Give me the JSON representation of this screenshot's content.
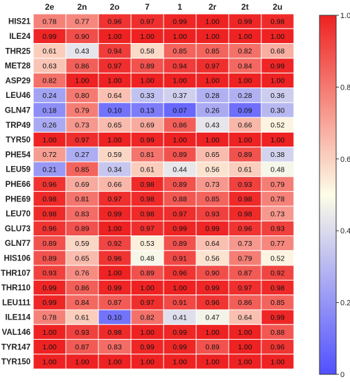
{
  "chart_data": {
    "type": "heatmap",
    "columns": [
      "2e",
      "2n",
      "2o",
      "7",
      "1",
      "2r",
      "2t",
      "2u"
    ],
    "rows": [
      "HIS21",
      "ILE24",
      "THR25",
      "MET28",
      "ASP29",
      "LEU46",
      "GLN47",
      "TRP49",
      "TYR50",
      "PHE54",
      "LEU59",
      "PHE66",
      "PHE69",
      "LEU70",
      "GLU73",
      "GLN77",
      "HIS106",
      "THR107",
      "THR110",
      "LEU111",
      "ILE114",
      "VAL146",
      "TYR147",
      "TYR150"
    ],
    "values": [
      [
        0.78,
        0.77,
        0.96,
        0.97,
        0.99,
        1.0,
        0.99,
        0.98
      ],
      [
        0.99,
        0.9,
        1.0,
        1.0,
        1.0,
        1.0,
        1.0,
        1.0
      ],
      [
        0.61,
        0.43,
        0.94,
        0.58,
        0.85,
        0.85,
        0.82,
        0.68
      ],
      [
        0.63,
        0.86,
        0.97,
        0.89,
        0.94,
        0.97,
        0.84,
        0.99
      ],
      [
        0.82,
        1.0,
        1.0,
        1.0,
        1.0,
        1.0,
        1.0,
        1.0
      ],
      [
        0.24,
        0.8,
        0.64,
        0.33,
        0.37,
        0.28,
        0.28,
        0.36
      ],
      [
        0.18,
        0.79,
        0.1,
        0.13,
        0.07,
        0.26,
        0.09,
        0.3
      ],
      [
        0.26,
        0.73,
        0.65,
        0.69,
        0.86,
        0.43,
        0.66,
        0.52
      ],
      [
        1.0,
        0.97,
        1.0,
        0.99,
        1.0,
        1.0,
        1.0,
        1.0
      ],
      [
        0.72,
        0.27,
        0.59,
        0.81,
        0.89,
        0.65,
        0.89,
        0.38
      ],
      [
        0.21,
        0.85,
        0.34,
        0.61,
        0.44,
        0.56,
        0.61,
        0.48
      ],
      [
        0.96,
        0.69,
        0.66,
        0.98,
        0.89,
        0.73,
        0.93,
        0.79
      ],
      [
        0.98,
        0.81,
        0.97,
        0.98,
        0.88,
        0.85,
        0.98,
        0.78
      ],
      [
        0.98,
        0.83,
        0.99,
        0.98,
        0.97,
        0.93,
        0.98,
        0.73
      ],
      [
        0.96,
        0.89,
        1.0,
        0.97,
        0.99,
        0.99,
        0.96,
        0.93
      ],
      [
        0.89,
        0.59,
        0.92,
        0.53,
        0.89,
        0.64,
        0.73,
        0.77
      ],
      [
        0.89,
        0.65,
        0.96,
        0.48,
        0.91,
        0.56,
        0.79,
        0.52
      ],
      [
        0.93,
        0.76,
        1.0,
        0.89,
        0.96,
        0.9,
        0.87,
        0.92
      ],
      [
        0.99,
        0.86,
        0.99,
        1.0,
        1.0,
        0.99,
        0.97,
        0.98
      ],
      [
        0.99,
        0.84,
        0.87,
        0.97,
        0.91,
        0.96,
        0.86,
        0.85
      ],
      [
        0.78,
        0.61,
        0.1,
        0.82,
        0.41,
        0.47,
        0.64,
        0.99
      ],
      [
        1.0,
        0.93,
        0.98,
        1.0,
        0.99,
        1.0,
        1.0,
        0.88
      ],
      [
        1.0,
        0.87,
        0.83,
        0.99,
        0.99,
        0.89,
        1.0,
        0.96
      ],
      [
        1.0,
        1.0,
        1.0,
        1.0,
        1.0,
        1.0,
        1.0,
        1.0
      ]
    ],
    "colorbar": {
      "min": 0,
      "max": 1,
      "ticks": [
        "0",
        "0.2",
        "0.4",
        "0.6",
        "0.8",
        "1.0"
      ],
      "colors": {
        "low": "#5050ff",
        "mid": "#fdfde8",
        "high": "#ee2222"
      }
    },
    "title": "",
    "xlabel": "",
    "ylabel": ""
  }
}
